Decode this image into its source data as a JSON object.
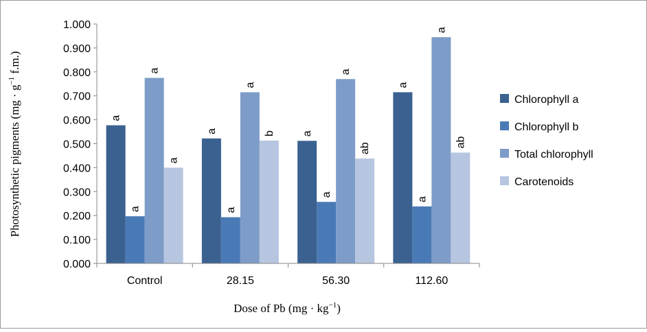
{
  "colors": {
    "series": [
      "#3a6190",
      "#4a7ab6",
      "#7d9cc8",
      "#b7c6e0"
    ],
    "axis": "#868686",
    "frame": "#999999",
    "text": "#000000"
  },
  "chart_data": {
    "type": "bar",
    "title": "",
    "xlabel_text": "Dose of Pb (mg · kg",
    "xlabel_sup": "−1",
    "xlabel_close": ")",
    "ylabel_text": "Photosynthetic pigments (mg · g",
    "ylabel_sup": "−1",
    "ylabel_close": " f.m.)",
    "ylim": [
      0,
      1
    ],
    "yticks": [
      "0.000",
      "0.100",
      "0.200",
      "0.300",
      "0.400",
      "0.500",
      "0.600",
      "0.700",
      "0.800",
      "0.900",
      "1.000"
    ],
    "categories": [
      "Control",
      "28.15",
      "56.30",
      "112.60"
    ],
    "series": [
      {
        "name": "Chlorophyll a",
        "values": [
          0.577,
          0.522,
          0.512,
          0.715
        ],
        "labels": [
          "a",
          "a",
          "a",
          "a"
        ]
      },
      {
        "name": "Chlorophyll b",
        "values": [
          0.197,
          0.193,
          0.257,
          0.238
        ],
        "labels": [
          "a",
          "a",
          "a",
          "a"
        ]
      },
      {
        "name": "Total chlorophyll",
        "values": [
          0.775,
          0.715,
          0.77,
          0.945
        ],
        "labels": [
          "a",
          "a",
          "a",
          "a"
        ]
      },
      {
        "name": "Carotenoids",
        "values": [
          0.4,
          0.513,
          0.438,
          0.463
        ],
        "labels": [
          "a",
          "b",
          "ab",
          "ab"
        ]
      }
    ],
    "grid": false,
    "legend_position": "right"
  }
}
